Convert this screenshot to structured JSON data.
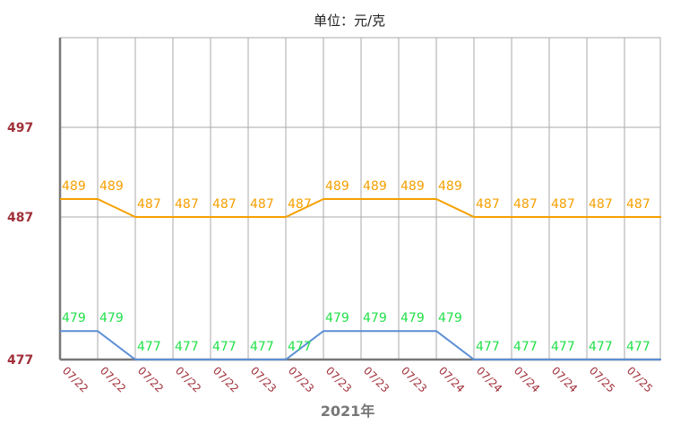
{
  "chart_data": {
    "type": "line",
    "title": "单位：元/克",
    "xlabel": "2021年",
    "ylabel": "",
    "ylim": [
      477,
      507
    ],
    "yticks": [
      477,
      487,
      497
    ],
    "grid": true,
    "categories": [
      "07/22",
      "07/22",
      "07/22",
      "07/22",
      "07/22",
      "07/23",
      "07/23",
      "07/23",
      "07/23",
      "07/23",
      "07/24",
      "07/24",
      "07/24",
      "07/24",
      "07/25",
      "07/25"
    ],
    "series": [
      {
        "values": [
          489,
          489,
          487,
          487,
          487,
          487,
          487,
          489,
          489,
          489,
          489,
          487,
          487,
          487,
          487,
          487
        ],
        "color": "#f5a000",
        "label_color": "#f5a000"
      },
      {
        "values": [
          479,
          479,
          477,
          477,
          477,
          477,
          477,
          479,
          479,
          479,
          479,
          477,
          477,
          477,
          477,
          477
        ],
        "color": "#5b8fd6",
        "label_color": "#22e04a"
      }
    ],
    "colors": {
      "ytick": "#a0303a",
      "xtick": "#a0303a",
      "grid": "#aaaaaa",
      "axis": "#777777"
    }
  }
}
